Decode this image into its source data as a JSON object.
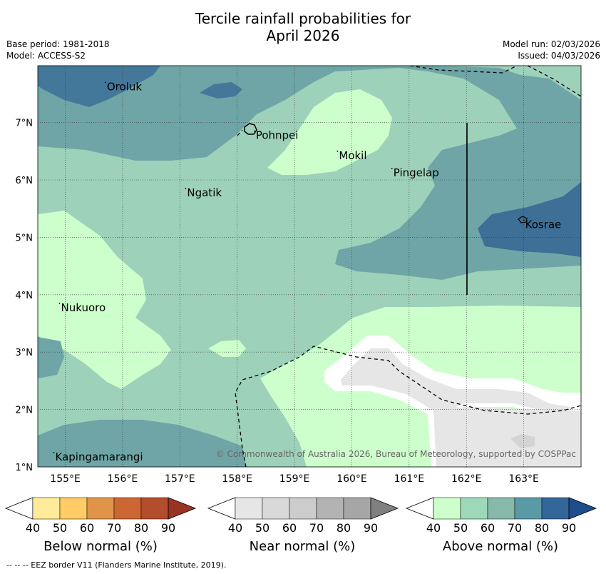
{
  "title": {
    "line1": "Tercile rainfall probabilities for",
    "line2": "April 2026"
  },
  "meta": {
    "base_period": "Base period: 1981-2018",
    "model": "Model: ACCESS-S2",
    "model_run": "Model run: 02/03/2026",
    "issued": "Issued: 04/03/2026"
  },
  "map": {
    "lon_ticks": [
      "155°E",
      "156°E",
      "157°E",
      "158°E",
      "159°E",
      "160°E",
      "161°E",
      "162°E",
      "163°E"
    ],
    "lat_ticks": [
      "1°N",
      "2°N",
      "3°N",
      "4°N",
      "5°N",
      "6°N",
      "7°N"
    ],
    "places": [
      {
        "id": "oroluk",
        "name": "Oroluk",
        "lon": 155.7,
        "lat": 7.7
      },
      {
        "id": "pohnpei",
        "name": "Pohnpei",
        "lon": 158.3,
        "lat": 6.85
      },
      {
        "id": "mokil",
        "name": "Mokil",
        "lon": 159.75,
        "lat": 6.5
      },
      {
        "id": "pingelap",
        "name": "Pingelap",
        "lon": 160.7,
        "lat": 6.2
      },
      {
        "id": "ngatik",
        "name": "Ngatik",
        "lon": 157.1,
        "lat": 5.85
      },
      {
        "id": "kosrae",
        "name": "Kosrae",
        "lon": 163.0,
        "lat": 5.3
      },
      {
        "id": "nukuoro",
        "name": "Nukuoro",
        "lon": 154.9,
        "lat": 3.85
      },
      {
        "id": "kapingamarangi",
        "name": "Kapingamarangi",
        "lon": 154.8,
        "lat": 1.25
      }
    ],
    "copyright": "© Commonwealth of Australia 2026, Bureau of Meteorology, supported by COSPPac",
    "colors": {
      "above_40": "#ccffcc",
      "above_50": "#9dd1b9",
      "above_60": "#86b9aa",
      "above_70": "#6aa3a6",
      "above_80": "#44789a",
      "above_90": "#1f4e8c",
      "near_40": "#e6e6e6",
      "white": "#ffffff"
    }
  },
  "legends": [
    {
      "id": "below",
      "label": "Below normal (%)",
      "ticks": [
        "40",
        "50",
        "60",
        "70",
        "80",
        "90"
      ],
      "colors": [
        "#ffffff",
        "#ffeb99",
        "#ffcc66",
        "#e0944a",
        "#cc6633",
        "#b34d2d",
        "#993322"
      ]
    },
    {
      "id": "near",
      "label": "Near normal (%)",
      "ticks": [
        "40",
        "50",
        "60",
        "70",
        "80",
        "90"
      ],
      "colors": [
        "#ffffff",
        "#e6e6e6",
        "#d9d9d9",
        "#cccccc",
        "#b3b3b3",
        "#a6a6a6",
        "#808080"
      ]
    },
    {
      "id": "above",
      "label": "Above normal (%)",
      "ticks": [
        "40",
        "50",
        "60",
        "70",
        "80",
        "90"
      ],
      "colors": [
        "#ffffff",
        "#ccffcc",
        "#9dd9b9",
        "#86b9aa",
        "#5a9aa6",
        "#336699",
        "#1f4e8c"
      ]
    }
  ],
  "footnote": "--  --  -- EEZ border V11 (Flanders Marine Institute, 2019)."
}
